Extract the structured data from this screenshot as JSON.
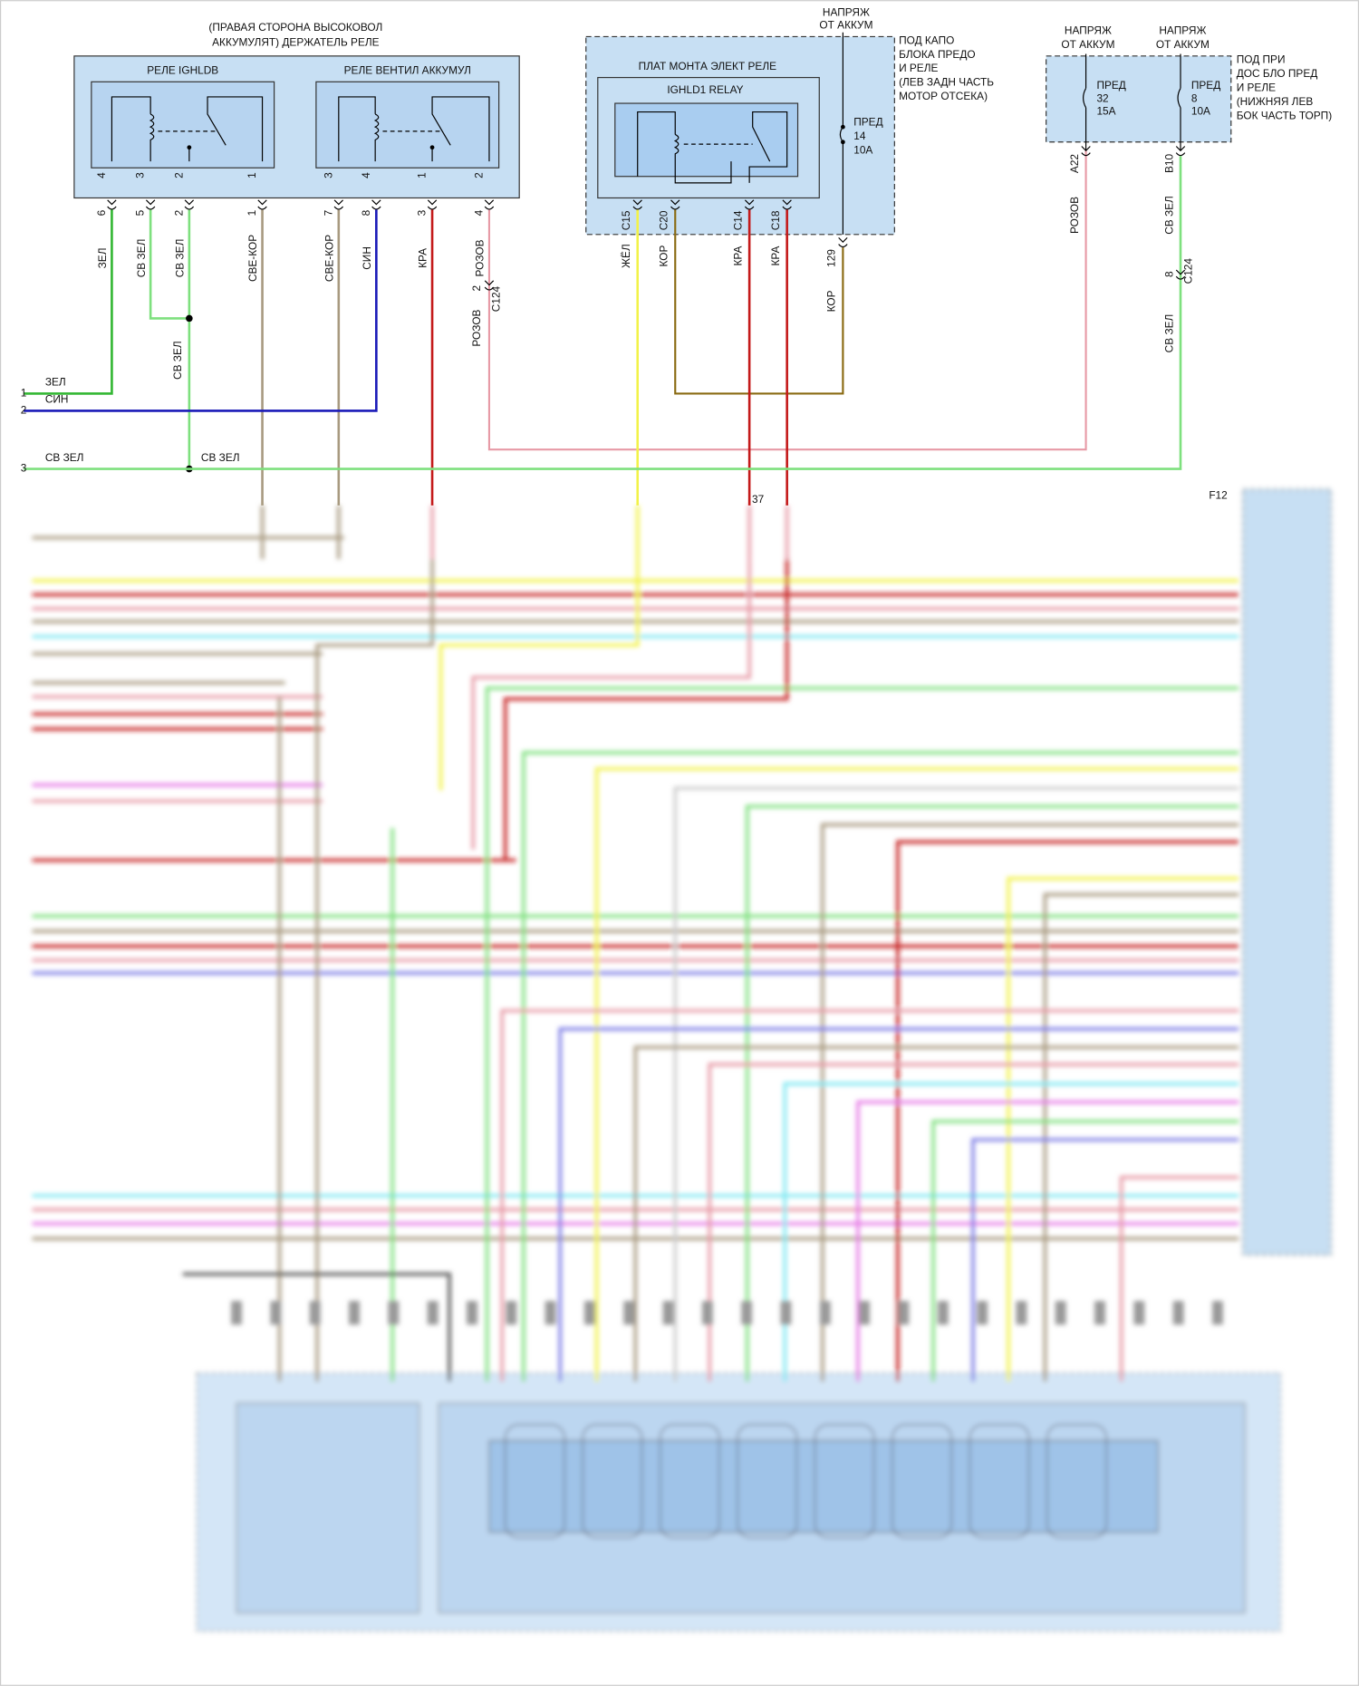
{
  "relay_holder": {
    "title": [
      "(ПРАВАЯ СТОРОНА ВЫСОКОВОЛ",
      "АККУМУЛЯТ) ДЕРЖАТЕЛЬ РЕЛЕ"
    ],
    "relays": [
      {
        "name": "РЕЛЕ IGHLDB",
        "pins": [
          "4",
          "3",
          "2",
          "1"
        ],
        "connector_pins": [
          "6",
          "5",
          "2",
          "1"
        ],
        "wires": [
          "ЗЕЛ",
          "СВ ЗЕЛ",
          "СВ ЗЕЛ",
          "СВЕ-КОР"
        ]
      },
      {
        "name": "РЕЛЕ ВЕНТИЛ АККУМУЛ",
        "pins": [
          "3",
          "4",
          "1",
          "2"
        ],
        "connector_pins": [
          "7",
          "8",
          "3",
          "4"
        ],
        "wires": [
          "СВЕ-КОР",
          "СИН",
          "КРА",
          "РОЗОВ"
        ]
      }
    ],
    "splice_wire": "СВ ЗЕЛ",
    "pink_connector": {
      "pin": "2",
      "name": "C124",
      "wire": "РОЗОВ"
    }
  },
  "relay_board": {
    "supply": [
      "НАПРЯЖ",
      "ОТ АККУМ"
    ],
    "location": [
      "ПОД КАПО",
      "БЛОКА ПРЕДО",
      "И РЕЛЕ",
      "(ЛЕВ ЗАДН ЧАСТЬ",
      "МОТОР ОТСЕКА)"
    ],
    "title": "ПЛАТ МОНТА ЭЛЕКТ РЕЛЕ",
    "relay": "IGHLD1 RELAY",
    "fuse": [
      "ПРЕД",
      "14",
      "10A"
    ],
    "pins": [
      "C15",
      "C20",
      "C14",
      "C18",
      "129"
    ],
    "wires": [
      "ЖЁЛ",
      "КОР",
      "КРА",
      "КРА",
      "КОР"
    ]
  },
  "fuse_block": {
    "supplies": [
      [
        "НАПРЯЖ",
        "ОТ АККУМ"
      ],
      [
        "НАПРЯЖ",
        "ОТ АККУМ"
      ]
    ],
    "fuses": [
      [
        "ПРЕД",
        "32",
        "15A"
      ],
      [
        "ПРЕД",
        "8",
        "10A"
      ]
    ],
    "location": [
      "ПОД ПРИ",
      "ДОС БЛО ПРЕД",
      "И РЕЛЕ",
      "(НИЖНЯЯ ЛЕВ",
      "БОК ЧАСТЬ ТОРП)"
    ],
    "pins": [
      "A22",
      "B10"
    ],
    "wires": [
      "РОЗОВ",
      "СВ ЗЕЛ"
    ],
    "connector": {
      "pin": "8",
      "name": "C124",
      "wire": "СВ ЗЕЛ"
    }
  },
  "lines": [
    {
      "number": "1",
      "wire": "ЗЕЛ"
    },
    {
      "number": "2",
      "wire": "СИН"
    },
    {
      "number": "3",
      "wire": "СВ ЗЕЛ",
      "splice_wire": "СВ ЗЕЛ"
    }
  ],
  "wire_37": "37",
  "connector_f12": "F12"
}
